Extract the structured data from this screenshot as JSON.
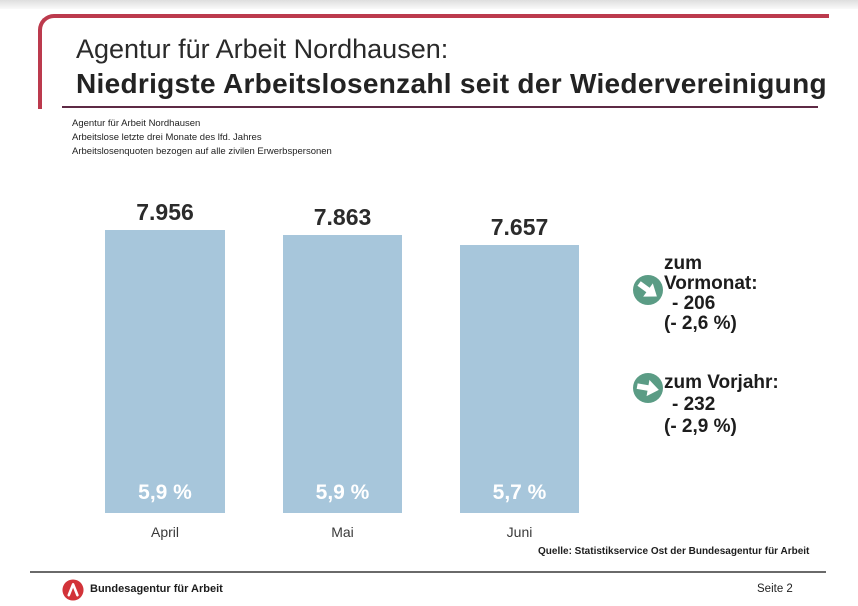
{
  "header": {
    "title_line1": "Agentur für Arbeit Nordhausen:",
    "title_line2": "Niedrigste Arbeitslosenzahl seit der Wiedervereinigung",
    "subtitle_lines": [
      "Agentur für Arbeit Nordhausen",
      "Arbeitslose letzte drei Monate des lfd. Jahres",
      "Arbeitslosenquoten bezogen auf alle zivilen Erwerbspersonen"
    ]
  },
  "chart_data": {
    "type": "bar",
    "title": "Niedrigste Arbeitslosenzahl seit der Wiedervereinigung",
    "categories": [
      "April",
      "Mai",
      "Juni"
    ],
    "values": [
      7956,
      7863,
      7657
    ],
    "value_labels": [
      "7.956",
      "7.863",
      "7.657"
    ],
    "rate_labels": [
      "5,9 %",
      "5,9 %",
      "5,7 %"
    ],
    "ylim": [
      2300,
      8100
    ],
    "grid": false,
    "legend": "none",
    "bar_color": "#a7c6db"
  },
  "annotations": [
    {
      "icon": "arrow-down-right-circle",
      "label": "zum Vormonat:",
      "delta": "- 206",
      "percent": "(- 2,6 %)"
    },
    {
      "icon": "arrow-right-circle",
      "label": "zum Vorjahr:",
      "delta": "- 232",
      "percent": "(- 2,9 %)"
    }
  ],
  "source": "Quelle: Statistikservice Ost der Bundesagentur für Arbeit",
  "footer": {
    "brand": "Bundesagentur für Arbeit",
    "page_number": "Seite 2"
  },
  "colors": {
    "bar": "#a7c6db",
    "accent_red": "#bc3a4d",
    "title_underline": "#5e2a45",
    "arrow_green": "#5b9c85",
    "logo_red": "#d23339"
  }
}
